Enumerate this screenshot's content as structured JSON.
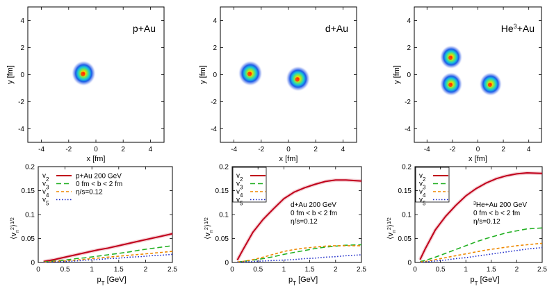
{
  "chart_data": [
    {
      "type": "heatmap",
      "system_label": "p+Au",
      "xlabel": "x [fm]",
      "ylabel": "y [fm]",
      "xlim": [
        -5,
        5
      ],
      "ylim": [
        -5,
        5
      ],
      "xticks": [
        "-4",
        "-2",
        "0",
        "2",
        "4"
      ],
      "yticks": [
        "4",
        "2",
        "0",
        "-2",
        "-4"
      ],
      "blobs": [
        {
          "x": -0.9,
          "y": 0.1,
          "r": 0.9
        }
      ]
    },
    {
      "type": "heatmap",
      "system_label": "d+Au",
      "xlabel": "x [fm]",
      "ylabel": "y [fm]",
      "xlim": [
        -5,
        5
      ],
      "ylim": [
        -5,
        5
      ],
      "xticks": [
        "-4",
        "-2",
        "0",
        "2",
        "4"
      ],
      "yticks": [
        "4",
        "2",
        "0",
        "-2",
        "-4"
      ],
      "blobs": [
        {
          "x": -2.8,
          "y": 0.1,
          "r": 0.9
        },
        {
          "x": 0.7,
          "y": -0.3,
          "r": 0.9
        }
      ]
    },
    {
      "type": "heatmap",
      "system_label": "He3+Au",
      "system_label_base": "He",
      "system_label_sup": "3",
      "system_label_rest": "+Au",
      "xlabel": "x [fm]",
      "ylabel": "y [fm]",
      "xlim": [
        -5,
        5
      ],
      "ylim": [
        -5,
        5
      ],
      "xticks": [
        "-4",
        "-2",
        "0",
        "2",
        "4"
      ],
      "yticks": [
        "4",
        "2",
        "0",
        "-2",
        "-4"
      ],
      "blobs": [
        {
          "x": -2.1,
          "y": 1.3,
          "r": 0.9
        },
        {
          "x": -2.1,
          "y": -0.7,
          "r": 0.9
        },
        {
          "x": 1.0,
          "y": -0.7,
          "r": 0.9
        }
      ]
    },
    {
      "type": "line",
      "xlabel": "p_T [GeV]",
      "ylabel": "<v_n^2>^1/2",
      "xlim": [
        0,
        2.5
      ],
      "ylim": [
        0,
        0.2
      ],
      "xticks": [
        "0",
        "0.5",
        "1",
        "1.5",
        "2",
        "2.5"
      ],
      "yticks": [
        "0",
        "0.05",
        "0.1",
        "0.15",
        "0.2"
      ],
      "legend": [
        {
          "label": "v2",
          "text": "p+Au 200 GeV"
        },
        {
          "label": "v3",
          "text": "0 fm < b < 2 fm"
        },
        {
          "label": "v4",
          "text": "η/s=0.12"
        },
        {
          "label": "v5",
          "text": ""
        }
      ],
      "annotation": [],
      "x": [
        0.1,
        0.3,
        0.5,
        0.7,
        0.9,
        1.1,
        1.3,
        1.5,
        1.7,
        1.9,
        2.1,
        2.3,
        2.5
      ],
      "series": [
        {
          "name": "v2",
          "values": [
            0.002,
            0.006,
            0.011,
            0.016,
            0.021,
            0.026,
            0.03,
            0.035,
            0.04,
            0.045,
            0.05,
            0.055,
            0.06
          ]
        },
        {
          "name": "v3",
          "values": [
            0.001,
            0.003,
            0.005,
            0.008,
            0.01,
            0.013,
            0.016,
            0.019,
            0.022,
            0.026,
            0.029,
            0.032,
            0.035
          ]
        },
        {
          "name": "v4",
          "values": [
            0.0005,
            0.002,
            0.003,
            0.005,
            0.007,
            0.009,
            0.011,
            0.013,
            0.015,
            0.017,
            0.019,
            0.021,
            0.023
          ]
        },
        {
          "name": "v5",
          "values": [
            0.0003,
            0.001,
            0.002,
            0.003,
            0.005,
            0.006,
            0.008,
            0.009,
            0.011,
            0.012,
            0.014,
            0.015,
            0.017
          ]
        }
      ]
    },
    {
      "type": "line",
      "xlabel": "p_T [GeV]",
      "ylabel": "<v_n^2>^1/2",
      "xlim": [
        0,
        2.5
      ],
      "ylim": [
        0,
        0.2
      ],
      "xticks": [
        "0",
        "0.5",
        "1",
        "1.5",
        "2",
        "2.5"
      ],
      "yticks": [
        "0",
        "0.05",
        "0.1",
        "0.15",
        "0.2"
      ],
      "legend": [
        {
          "label": "v2",
          "text": ""
        },
        {
          "label": "v3",
          "text": ""
        },
        {
          "label": "v4",
          "text": ""
        },
        {
          "label": "v5",
          "text": ""
        }
      ],
      "annotation": [
        "d+Au 200 GeV",
        "0 fm < b < 2 fm",
        "η/s=0.12"
      ],
      "x": [
        0.1,
        0.2,
        0.4,
        0.6,
        0.8,
        1.0,
        1.2,
        1.4,
        1.6,
        1.8,
        2.0,
        2.2,
        2.5
      ],
      "series": [
        {
          "name": "v2",
          "values": [
            0.005,
            0.025,
            0.063,
            0.09,
            0.112,
            0.133,
            0.147,
            0.156,
            0.163,
            0.169,
            0.172,
            0.172,
            0.17
          ]
        },
        {
          "name": "v3",
          "values": [
            0.001,
            0.002,
            0.005,
            0.008,
            0.012,
            0.017,
            0.021,
            0.025,
            0.029,
            0.032,
            0.034,
            0.036,
            0.037
          ]
        },
        {
          "name": "v4",
          "values": [
            0.001,
            0.002,
            0.006,
            0.011,
            0.017,
            0.023,
            0.027,
            0.03,
            0.032,
            0.034,
            0.035,
            0.035,
            0.035
          ]
        },
        {
          "name": "v5",
          "values": [
            0.0005,
            0.001,
            0.002,
            0.003,
            0.004,
            0.005,
            0.006,
            0.008,
            0.009,
            0.011,
            0.012,
            0.014,
            0.016
          ]
        }
      ]
    },
    {
      "type": "line",
      "xlabel": "p_T [GeV]",
      "ylabel": "<v_n^2>^1/2",
      "xlim": [
        0,
        2.5
      ],
      "ylim": [
        0,
        0.2
      ],
      "xticks": [
        "0",
        "0.5",
        "1",
        "1.5",
        "2",
        "2.5"
      ],
      "yticks": [
        "0",
        "0.05",
        "0.1",
        "0.15",
        "0.2"
      ],
      "legend": [
        {
          "label": "v2",
          "text": ""
        },
        {
          "label": "v3",
          "text": ""
        },
        {
          "label": "v4",
          "text": ""
        },
        {
          "label": "v5",
          "text": ""
        }
      ],
      "annotation": [
        "3He+Au 200 GeV",
        "0 fm < b < 2 fm",
        "η/s=0.12"
      ],
      "x": [
        0.1,
        0.2,
        0.4,
        0.6,
        0.8,
        1.0,
        1.2,
        1.4,
        1.6,
        1.8,
        2.0,
        2.2,
        2.5
      ],
      "series": [
        {
          "name": "v2",
          "values": [
            0.006,
            0.028,
            0.068,
            0.096,
            0.119,
            0.139,
            0.154,
            0.166,
            0.175,
            0.181,
            0.185,
            0.187,
            0.186
          ]
        },
        {
          "name": "v3",
          "values": [
            0.002,
            0.004,
            0.011,
            0.019,
            0.027,
            0.035,
            0.043,
            0.05,
            0.056,
            0.062,
            0.066,
            0.07,
            0.072
          ]
        },
        {
          "name": "v4",
          "values": [
            0.001,
            0.002,
            0.006,
            0.01,
            0.014,
            0.018,
            0.022,
            0.026,
            0.029,
            0.032,
            0.035,
            0.037,
            0.04
          ]
        },
        {
          "name": "v5",
          "values": [
            0.0005,
            0.001,
            0.003,
            0.005,
            0.008,
            0.01,
            0.013,
            0.016,
            0.019,
            0.022,
            0.025,
            0.028,
            0.031
          ]
        }
      ]
    }
  ],
  "colors": {
    "v2": "#c0001a",
    "v3": "#22b022",
    "v4": "#ee8800",
    "v5": "#1a28c8"
  }
}
